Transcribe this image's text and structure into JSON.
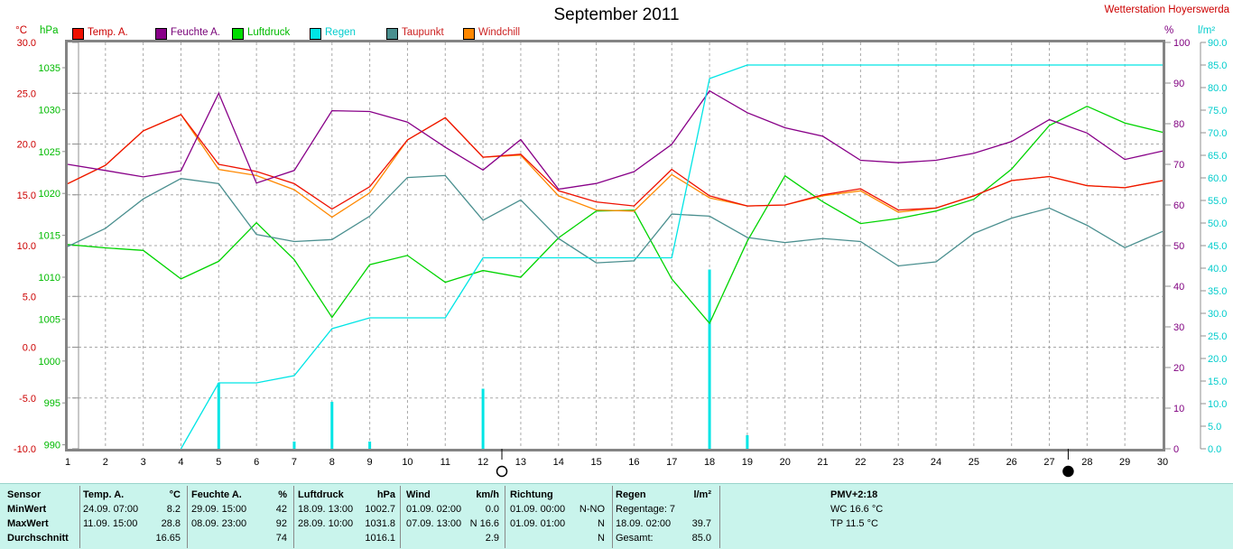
{
  "title": "September 2011",
  "station": "Wetterstation Hoyerswerda",
  "legend": [
    {
      "label": "Temp. A.",
      "swatch": "#ee1100",
      "text_color": "#cc0000"
    },
    {
      "label": "Feuchte A.",
      "swatch": "#880088",
      "text_color": "#770077"
    },
    {
      "label": "Luftdruck",
      "swatch": "#00dd00",
      "text_color": "#00bb00"
    },
    {
      "label": "Regen",
      "swatch": "#00e5e5",
      "text_color": "#00cccc"
    },
    {
      "label": "Taupunkt",
      "swatch": "#4a8f8f",
      "text_color": "#cc2222"
    },
    {
      "label": "Windchill",
      "swatch": "#ff8800",
      "text_color": "#cc2222"
    }
  ],
  "axes": {
    "temp": {
      "label": "°C",
      "color": "#cc0000",
      "min": -10,
      "max": 30,
      "ticks": [
        "30.0",
        "25.0",
        "20.0",
        "15.0",
        "10.0",
        "5.0",
        "0.0",
        "-5.0",
        "-10.0"
      ]
    },
    "pressure": {
      "label": "hPa",
      "color": "#00bb00",
      "min": 990,
      "max": 1035,
      "ticks": [
        "1035",
        "1030",
        "1025",
        "1020",
        "1015",
        "1010",
        "1005",
        "1000",
        "995",
        "990"
      ]
    },
    "humidity": {
      "label": "%",
      "color": "#800080",
      "min": 0,
      "max": 100,
      "ticks": [
        "100",
        "90",
        "80",
        "70",
        "60",
        "50",
        "40",
        "30",
        "20",
        "10",
        "0"
      ]
    },
    "rain": {
      "label": "l/m²",
      "color": "#00cccc",
      "min": 0,
      "max": 90,
      "ticks": [
        "90.0",
        "85.0",
        "80.0",
        "75.0",
        "70.0",
        "65.0",
        "60.0",
        "55.0",
        "50.0",
        "45.0",
        "40.0",
        "35.0",
        "30.0",
        "25.0",
        "20.0",
        "15.0",
        "10.0",
        "5.0",
        "0.0"
      ]
    }
  },
  "chart_data": {
    "type": "line",
    "x_label_days": [
      "1",
      "2",
      "3",
      "4",
      "5",
      "6",
      "7",
      "8",
      "9",
      "10",
      "11",
      "12",
      "13",
      "14",
      "15",
      "16",
      "17",
      "18",
      "19",
      "20",
      "21",
      "22",
      "23",
      "24",
      "25",
      "26",
      "27",
      "28",
      "29",
      "30"
    ],
    "series": [
      {
        "name": "Luftdruck",
        "axis": "pressure",
        "color": "#00d400",
        "values": [
          1013.9,
          1013.5,
          1013.2,
          1009.8,
          1011.9,
          1016.5,
          1012.1,
          1005.2,
          1011.5,
          1012.6,
          1009.4,
          1010.8,
          1010.0,
          1014.7,
          1017.9,
          1018.0,
          1009.8,
          1004.5,
          1014.3,
          1022.1,
          1019.0,
          1016.4,
          1017.0,
          1017.9,
          1019.3,
          1022.9,
          1028.1,
          1030.4,
          1028.4,
          1027.3
        ]
      },
      {
        "name": "Taupunkt",
        "axis": "temp",
        "color": "#4a8f8f",
        "values": [
          9.9,
          11.7,
          14.6,
          16.6,
          16.1,
          11.1,
          10.4,
          10.6,
          12.9,
          16.7,
          16.9,
          12.5,
          14.5,
          10.7,
          8.3,
          8.5,
          13.1,
          12.9,
          10.8,
          10.3,
          10.7,
          10.4,
          8.0,
          8.4,
          11.2,
          12.7,
          13.7,
          12.0,
          9.8,
          11.4
        ]
      },
      {
        "name": "Windchill",
        "axis": "temp",
        "color": "#ff8800",
        "values": [
          16.1,
          17.9,
          21.3,
          22.9,
          17.5,
          16.9,
          15.5,
          12.8,
          15.2,
          20.4,
          22.6,
          18.7,
          18.9,
          14.9,
          13.5,
          13.4,
          17.0,
          14.7,
          13.9,
          14.0,
          14.9,
          15.4,
          13.3,
          13.7,
          14.9,
          16.4,
          16.8,
          15.9,
          15.7,
          16.4
        ]
      },
      {
        "name": "Temp. A.",
        "axis": "temp",
        "color": "#ee1100",
        "values": [
          16.1,
          17.9,
          21.3,
          22.9,
          18.0,
          17.3,
          16.1,
          13.6,
          15.8,
          20.4,
          22.6,
          18.7,
          19.0,
          15.4,
          14.3,
          13.9,
          17.5,
          14.9,
          13.9,
          14.0,
          15.0,
          15.6,
          13.5,
          13.7,
          14.9,
          16.4,
          16.8,
          15.9,
          15.7,
          16.4
        ]
      },
      {
        "name": "Feuchte A.",
        "axis": "humidity",
        "color": "#880088",
        "values": [
          70,
          68.5,
          66.9,
          68.4,
          87.5,
          65.4,
          68.5,
          83.2,
          83.0,
          80.4,
          74.2,
          68.6,
          76.1,
          63.9,
          65.3,
          68.2,
          74.9,
          88.1,
          82.7,
          79.0,
          76.9,
          71.0,
          70.4,
          71.0,
          72.7,
          75.6,
          81.0,
          77.7,
          71.2,
          73.3
        ]
      },
      {
        "name": "Regen (kumuliert)",
        "axis": "rain",
        "color": "#00e5e5",
        "start_day": 4,
        "values": [
          0,
          0,
          0,
          0,
          14.6,
          14.6,
          16.2,
          26.6,
          29.0,
          29.0,
          29.0,
          42.3,
          42.3,
          42.3,
          42.3,
          42.3,
          42.3,
          82.0,
          85.0,
          85.0,
          85.0,
          85.0,
          85.0,
          85.0,
          85.0,
          85.0,
          85.0,
          85.0,
          85.0,
          85.0
        ]
      }
    ],
    "rain_bars": [
      {
        "day": 5,
        "value": 14.6
      },
      {
        "day": 7,
        "value": 1.6
      },
      {
        "day": 8,
        "value": 10.4
      },
      {
        "day": 9,
        "value": 1.6
      },
      {
        "day": 12,
        "value": 13.3
      },
      {
        "day": 18,
        "value": 39.7
      },
      {
        "day": 19,
        "value": 3.0
      }
    ],
    "moon_markers": [
      {
        "day": 12.5,
        "phase": "full"
      },
      {
        "day": 27.5,
        "phase": "new"
      }
    ],
    "grid": "dashed"
  },
  "summary_table": {
    "row_headers": [
      "Sensor",
      "MinWert",
      "MaxWert",
      "Durchschnitt"
    ],
    "columns": [
      {
        "title": "Temp. A.",
        "unit": "°C",
        "rows": [
          [
            "24.09.  07:00",
            "8.2"
          ],
          [
            "11.09.  15:00",
            "28.8"
          ],
          [
            "",
            "16.65"
          ]
        ]
      },
      {
        "title": "Feuchte A.",
        "unit": "%",
        "rows": [
          [
            "29.09.  15:00",
            "42"
          ],
          [
            "08.09.  23:00",
            "92"
          ],
          [
            "",
            "74"
          ]
        ]
      },
      {
        "title": "Luftdruck",
        "unit": "hPa",
        "rows": [
          [
            "18.09.  13:00",
            "1002.7"
          ],
          [
            "28.09.  10:00",
            "1031.8"
          ],
          [
            "",
            "1016.1"
          ]
        ]
      },
      {
        "title": "Wind",
        "unit": "km/h",
        "rows": [
          [
            "01.09.  02:00",
            "0.0"
          ],
          [
            "07.09.  13:00",
            "N 16.6"
          ],
          [
            "",
            "2.9"
          ]
        ]
      },
      {
        "title": "Richtung",
        "unit": "",
        "rows": [
          [
            "01.09.  00:00",
            "N-NO"
          ],
          [
            "01.09.  01:00",
            "N"
          ],
          [
            "",
            "N"
          ]
        ]
      },
      {
        "title": "Regen",
        "unit": "l/m²",
        "rows": [
          [
            "Regentage: 7",
            ""
          ],
          [
            "18.09.  02:00",
            "39.7"
          ],
          [
            "Gesamt:",
            "85.0"
          ]
        ]
      }
    ],
    "info": [
      "PMV+2:18",
      "WC 16.6 °C",
      "TP 11.5 °C"
    ]
  }
}
